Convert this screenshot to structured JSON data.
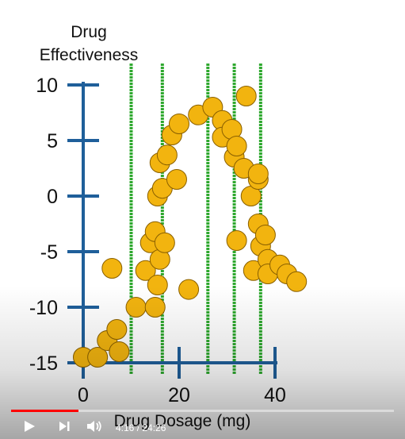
{
  "chart_data": {
    "type": "scatter",
    "ylabel_line1": "Drug",
    "ylabel_line2": "Effectiveness",
    "xlabel": "Drug Dosage (mg)",
    "xlim": [
      0,
      40
    ],
    "ylim": [
      -15,
      10
    ],
    "xticks": [
      0,
      20,
      40
    ],
    "yticks": [
      10,
      5,
      0,
      -5,
      -10,
      -15
    ],
    "vertical_lines": [
      10,
      16.5,
      26,
      31.5,
      37
    ],
    "colors": {
      "axis": "#1f5f9a",
      "point_fill": "#f2b40f",
      "point_stroke": "#8a6000",
      "vline": "#2ea82e"
    },
    "points": [
      {
        "x": 0,
        "y": -14.5
      },
      {
        "x": 3,
        "y": -14.5
      },
      {
        "x": 5,
        "y": -13
      },
      {
        "x": 7,
        "y": -12
      },
      {
        "x": 7.5,
        "y": -14
      },
      {
        "x": 6,
        "y": -6.5
      },
      {
        "x": 11,
        "y": -10
      },
      {
        "x": 13,
        "y": -6.7
      },
      {
        "x": 14,
        "y": -4.2
      },
      {
        "x": 15,
        "y": -3.2
      },
      {
        "x": 15,
        "y": -10
      },
      {
        "x": 15.5,
        "y": -8
      },
      {
        "x": 16,
        "y": -5.7
      },
      {
        "x": 17,
        "y": -4.2
      },
      {
        "x": 15.5,
        "y": 0
      },
      {
        "x": 16.5,
        "y": 0.7
      },
      {
        "x": 16,
        "y": 3
      },
      {
        "x": 17.5,
        "y": 3.7
      },
      {
        "x": 18.5,
        "y": 5.5
      },
      {
        "x": 19.5,
        "y": 1.5
      },
      {
        "x": 20,
        "y": 6.5
      },
      {
        "x": 22,
        "y": -8.4
      },
      {
        "x": 24,
        "y": 7.3
      },
      {
        "x": 27,
        "y": 8
      },
      {
        "x": 29,
        "y": 6.8
      },
      {
        "x": 29,
        "y": 5.3
      },
      {
        "x": 31,
        "y": 6
      },
      {
        "x": 31.5,
        "y": 3.5
      },
      {
        "x": 32,
        "y": 4.5
      },
      {
        "x": 32,
        "y": -4
      },
      {
        "x": 33.5,
        "y": 2.5
      },
      {
        "x": 34,
        "y": 9
      },
      {
        "x": 35,
        "y": 0
      },
      {
        "x": 35.5,
        "y": -6.7
      },
      {
        "x": 36.5,
        "y": 1.5
      },
      {
        "x": 36.5,
        "y": 2
      },
      {
        "x": 36.5,
        "y": -2.5
      },
      {
        "x": 37,
        "y": -4.5
      },
      {
        "x": 38,
        "y": -3.5
      },
      {
        "x": 38.5,
        "y": -5.7
      },
      {
        "x": 38.5,
        "y": -7
      },
      {
        "x": 41,
        "y": -6.2
      },
      {
        "x": 42.5,
        "y": -7
      },
      {
        "x": 44.5,
        "y": -7.7
      }
    ]
  },
  "player": {
    "time": "4:16 / 24:26",
    "progress_fraction": 0.175
  }
}
